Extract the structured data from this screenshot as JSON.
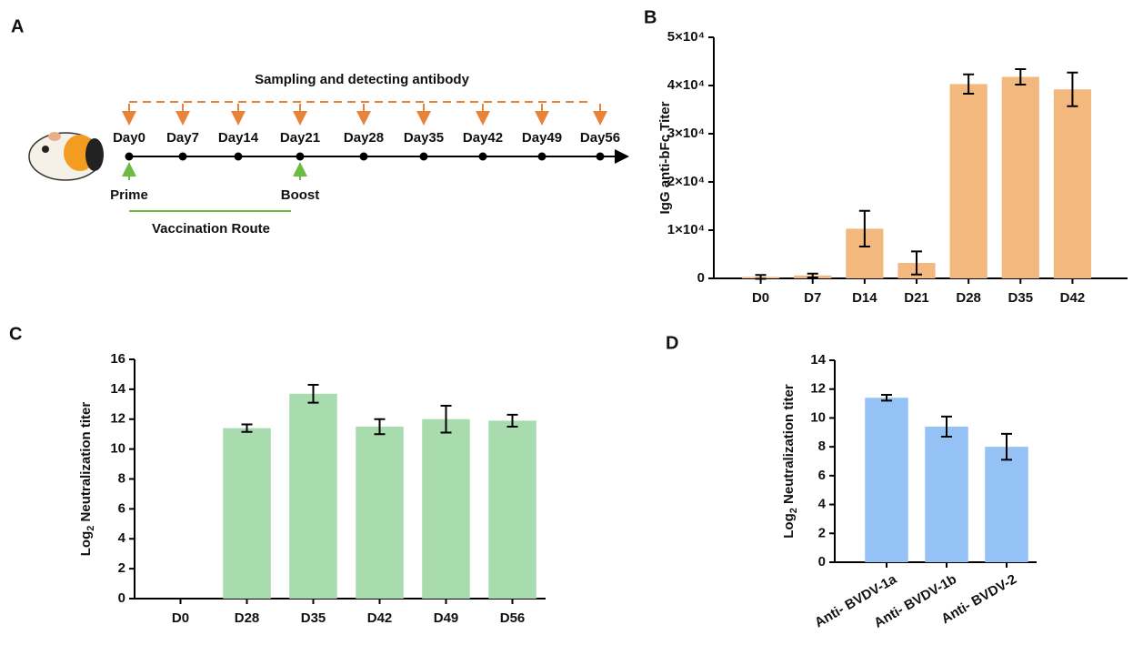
{
  "panel_labels": [
    "A",
    "B",
    "C",
    "D"
  ],
  "timeline": {
    "title": "Sampling and detecting antibody",
    "days": [
      "Day0",
      "Day7",
      "Day14",
      "Day21",
      "Day28",
      "Day35",
      "Day42",
      "Day49",
      "Day56"
    ],
    "prime": "Prime",
    "boost": "Boost",
    "route": "Vaccination Route"
  },
  "chart_data": [
    {
      "type": "bar",
      "ylabel": {
        "text": "IgG anti-bFc Titer"
      },
      "categories": [
        "D0",
        "D7",
        "D14",
        "D21",
        "D28",
        "D35",
        "D42"
      ],
      "values": [
        300,
        600,
        10300,
        3200,
        40300,
        41800,
        39200
      ],
      "errors": [
        400,
        400,
        3700,
        2400,
        2000,
        1600,
        3500
      ],
      "color": "#f2b87e",
      "ylim": [
        0,
        50000
      ],
      "yticks": [
        0,
        {
          "value": 10000,
          "label": "1×10⁴"
        },
        {
          "value": 20000,
          "label": "2×10⁴"
        },
        {
          "value": 30000,
          "label": "3×10⁴"
        },
        {
          "value": 40000,
          "label": "4×10⁴"
        },
        {
          "value": 50000,
          "label": "5×10⁴"
        }
      ]
    },
    {
      "type": "bar",
      "ylabel": {
        "text": "Log",
        "sub": "2",
        "rest": " Neutralization titer"
      },
      "categories": [
        "D0",
        "D28",
        "D35",
        "D42",
        "D49",
        "D56"
      ],
      "values": [
        0,
        11.4,
        13.7,
        11.5,
        12.0,
        11.9
      ],
      "errors": [
        null,
        0.25,
        0.6,
        0.5,
        0.9,
        0.4
      ],
      "color": "#a8dcae",
      "ylim": [
        0,
        16
      ],
      "yticks": [
        0,
        2,
        4,
        6,
        8,
        10,
        12,
        14,
        16
      ]
    },
    {
      "type": "bar",
      "ylabel": {
        "text": "Log",
        "sub": "2",
        "rest": " Neutralization titer"
      },
      "categories": [
        "Anti- BVDV-1a",
        "Anti- BVDV-1b",
        "Anti- BVDV-2"
      ],
      "values": [
        11.4,
        9.4,
        8.0
      ],
      "errors": [
        0.2,
        0.7,
        0.9
      ],
      "color": "#95c2f5",
      "ylim": [
        0,
        14
      ],
      "yticks": [
        0,
        2,
        4,
        6,
        8,
        10,
        12,
        14
      ]
    }
  ]
}
